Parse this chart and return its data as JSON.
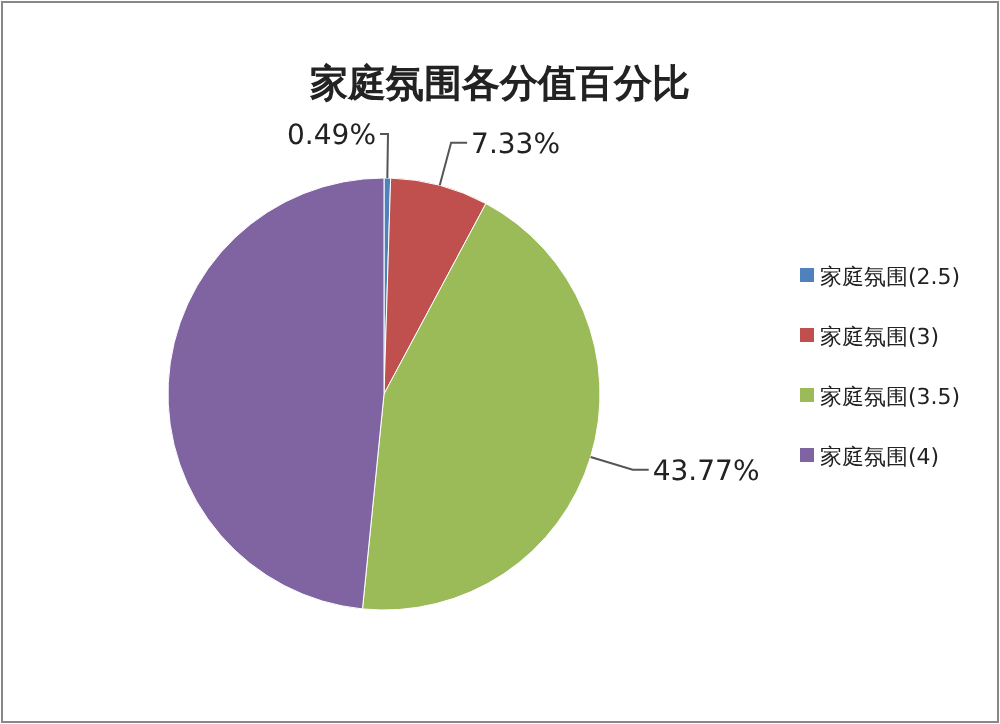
{
  "chart_data": {
    "type": "pie",
    "title": "家庭氛围各分值百分比",
    "categories": [
      "家庭氛围(2.5)",
      "家庭氛围(3)",
      "家庭氛围(3.5)",
      "家庭氛围(4)"
    ],
    "values": [
      0.49,
      7.33,
      43.77,
      48.41
    ],
    "colors": [
      "#4f81bd",
      "#c0504d",
      "#9bbb59",
      "#8064a2"
    ],
    "value_labels": [
      "0.49%",
      "7.33%",
      "43.77%",
      null
    ],
    "legend": "right"
  }
}
